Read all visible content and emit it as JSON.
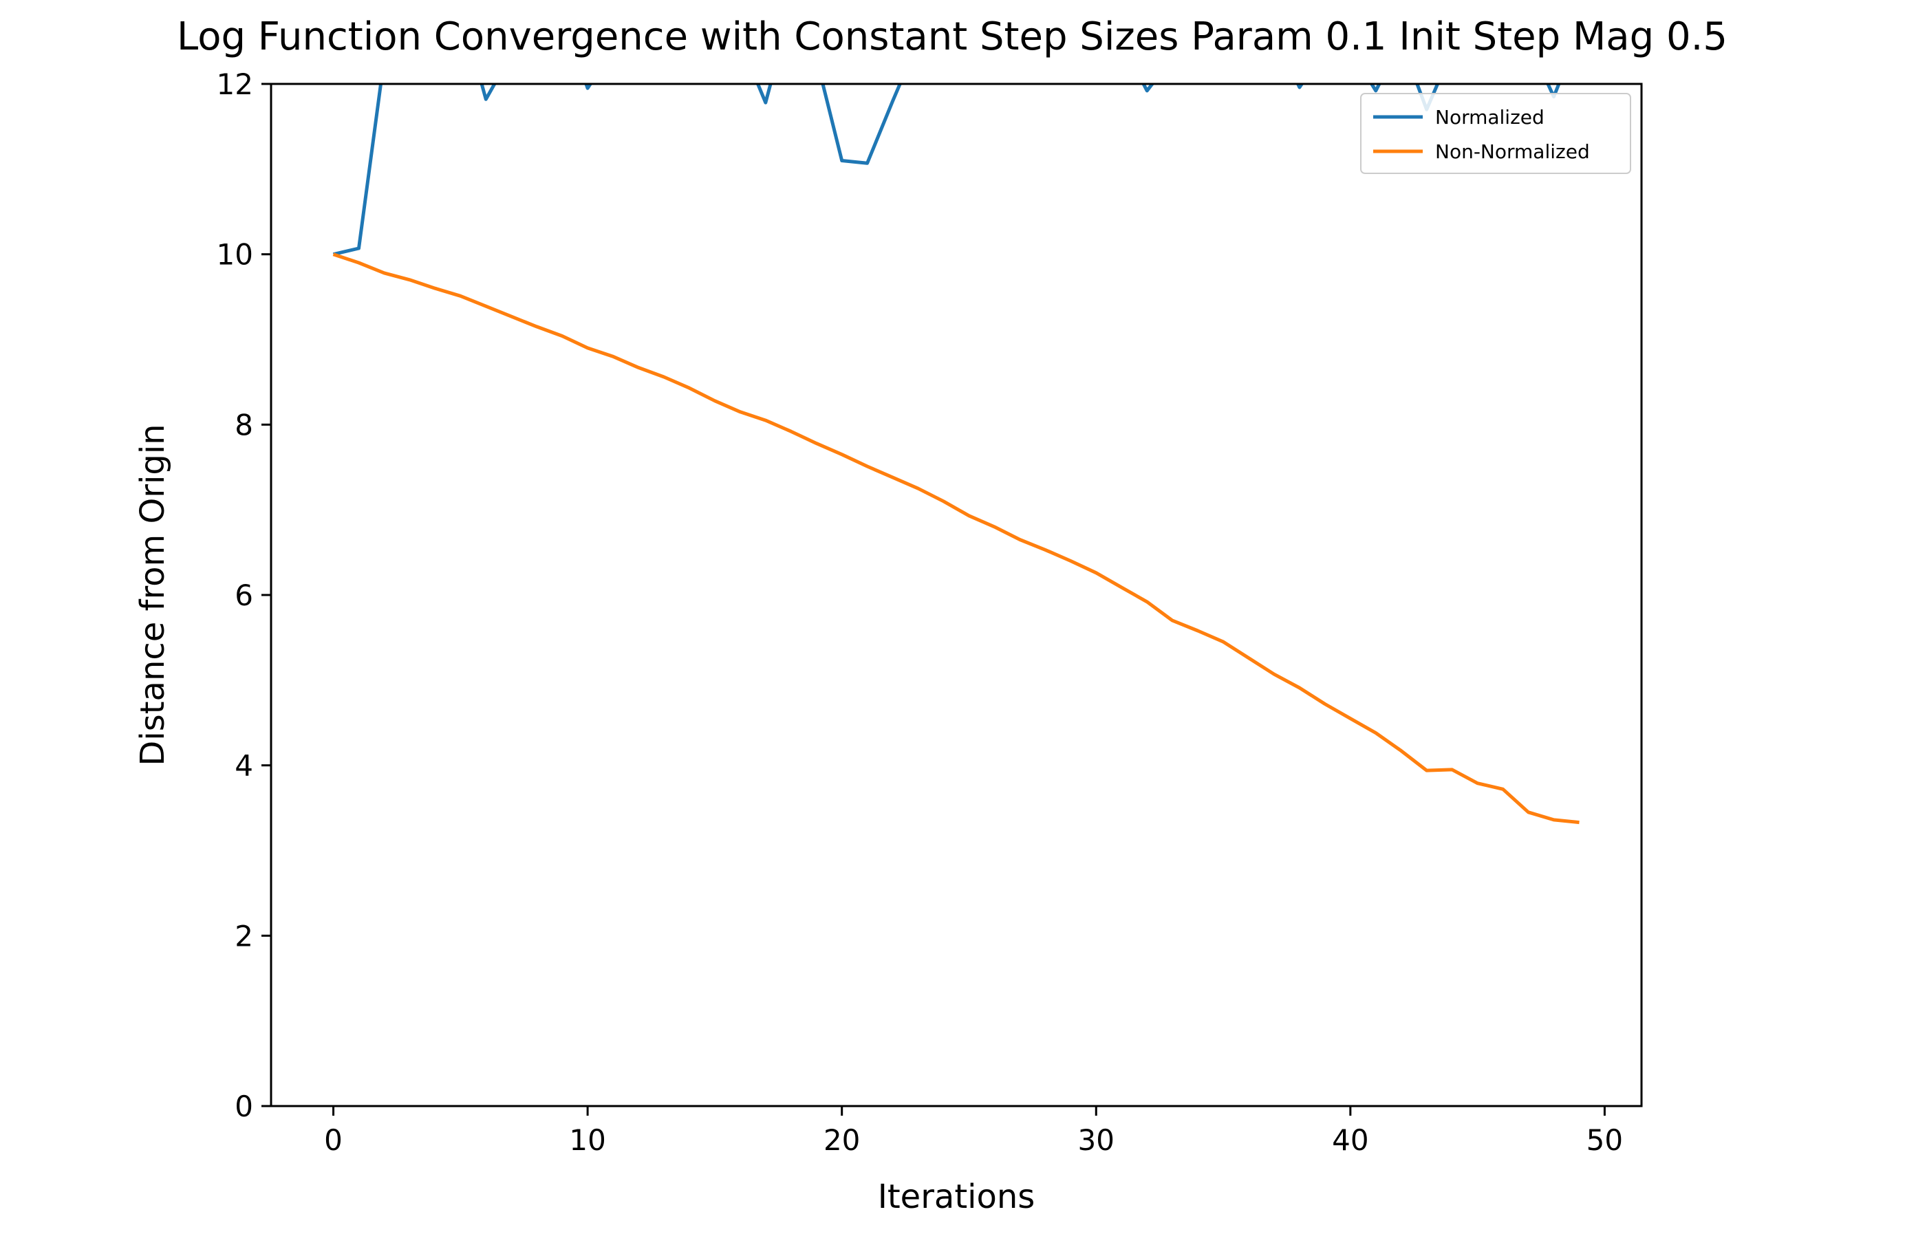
{
  "chart_data": {
    "type": "line",
    "title": "Log Function Convergence with Constant Step Sizes Param 0.1 Init Step Mag 0.5",
    "xlabel": "Iterations",
    "ylabel": "Distance from Origin",
    "xlim": [
      -2.45,
      51.45
    ],
    "ylim": [
      0,
      12
    ],
    "xticks": [
      0,
      10,
      20,
      30,
      40,
      50
    ],
    "yticks": [
      0,
      2,
      4,
      6,
      8,
      10,
      12
    ],
    "grid": false,
    "legend_position": "top-right",
    "x": [
      0,
      1,
      2,
      3,
      4,
      5,
      6,
      7,
      8,
      9,
      10,
      11,
      12,
      13,
      14,
      15,
      16,
      17,
      18,
      19,
      20,
      21,
      22,
      23,
      24,
      25,
      26,
      27,
      28,
      29,
      30,
      31,
      32,
      33,
      34,
      35,
      36,
      37,
      38,
      39,
      40,
      41,
      42,
      43,
      44,
      45,
      46,
      47,
      48,
      49
    ],
    "series": [
      {
        "name": "Normalized",
        "color": "#1f77b4",
        "values": [
          10.0,
          10.07,
          12.3,
          12.6,
          13.0,
          12.9,
          11.82,
          12.35,
          12.6,
          12.8,
          11.95,
          12.4,
          12.6,
          12.8,
          12.9,
          12.7,
          12.5,
          11.78,
          12.9,
          12.3,
          11.1,
          11.07,
          11.8,
          12.5,
          12.8,
          13.0,
          12.9,
          12.8,
          12.6,
          12.7,
          12.9,
          12.5,
          11.92,
          12.3,
          12.6,
          12.8,
          12.9,
          12.6,
          11.96,
          12.4,
          12.4,
          11.92,
          12.5,
          11.7,
          12.4,
          12.7,
          12.6,
          12.5,
          11.85,
          12.6
        ]
      },
      {
        "name": "Non-Normalized",
        "color": "#ff7f0e",
        "values": [
          10.0,
          9.9,
          9.78,
          9.7,
          9.6,
          9.51,
          9.39,
          9.27,
          9.15,
          9.04,
          8.9,
          8.8,
          8.67,
          8.56,
          8.43,
          8.28,
          8.15,
          8.05,
          7.92,
          7.78,
          7.65,
          7.51,
          7.38,
          7.25,
          7.1,
          6.93,
          6.8,
          6.65,
          6.53,
          6.4,
          6.26,
          6.09,
          5.92,
          5.7,
          5.58,
          5.45,
          5.26,
          5.07,
          4.91,
          4.72,
          4.55,
          4.38,
          4.17,
          3.94,
          3.95,
          3.79,
          3.72,
          3.45,
          3.36,
          3.33
        ]
      }
    ]
  }
}
